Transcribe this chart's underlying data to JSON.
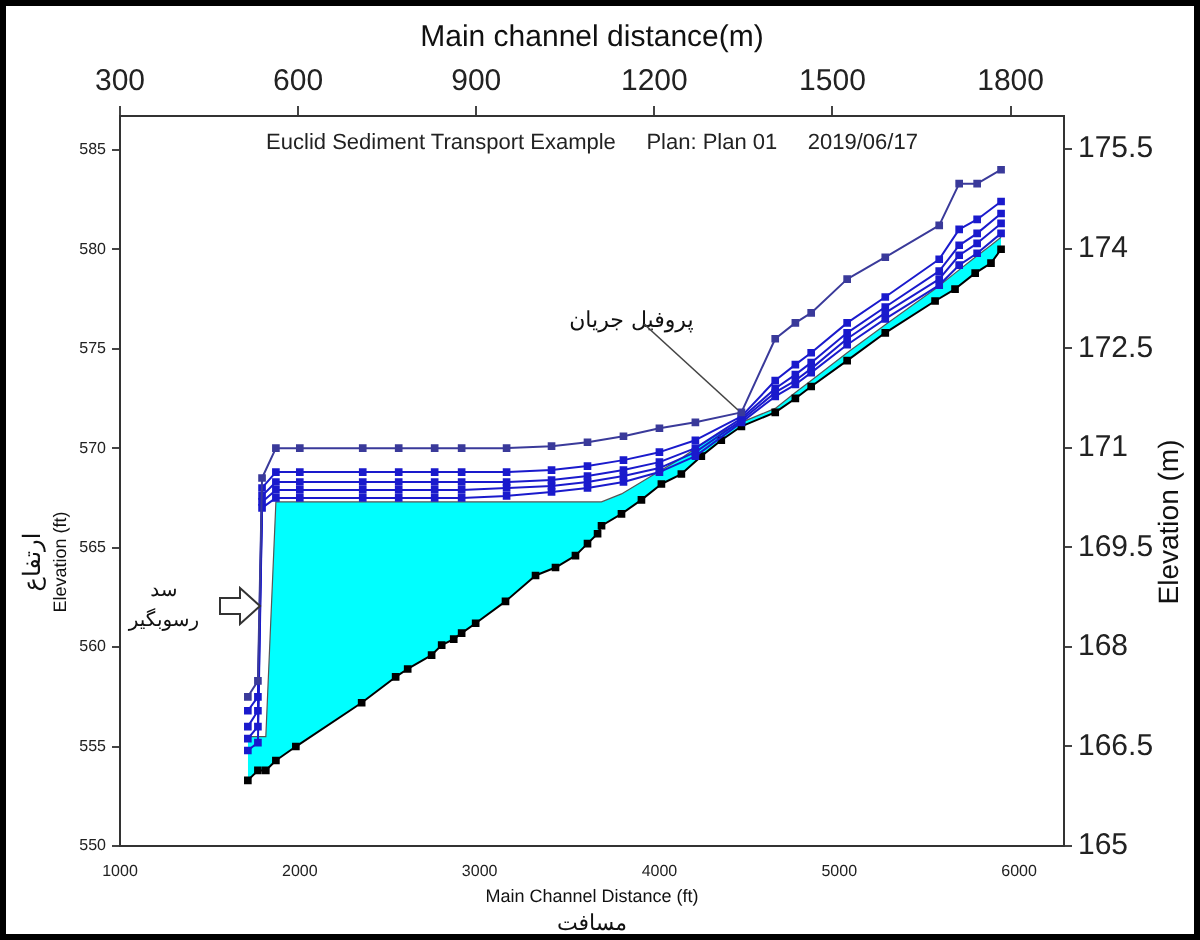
{
  "chart_data": {
    "type": "line",
    "title": "Euclid Sediment Transport Example     Plan: Plan 01     2019/06/17",
    "xlabel": "Main Channel Distance (ft)\nمسافت",
    "ylabel": "ارتفاع\nElevation (ft)",
    "x2label": "Main channel distance(m)",
    "y2label": "Elevation (m)",
    "xlim": [
      1000,
      6250
    ],
    "xticks": [
      1000,
      2000,
      3000,
      4000,
      5000,
      6000
    ],
    "ylim": [
      550,
      586.7
    ],
    "yticks": [
      550,
      555,
      560,
      565,
      570,
      575,
      580,
      585
    ],
    "x2lim": [
      300,
      1890
    ],
    "x2ticks": [
      300,
      600,
      900,
      1200,
      1500,
      1800
    ],
    "y2lim": [
      165,
      176
    ],
    "y2ticks": [
      165,
      166.5,
      168,
      169.5,
      171,
      172.5,
      174,
      175.5
    ],
    "grid": false,
    "legend": false,
    "marker": "square",
    "line_style": "solid",
    "annotations": [
      {
        "text": "پروفیل جریان",
        "x": 4456,
        "y": 571.8
      },
      "سد\nرسوبگیر"
    ],
    "series": [
      {
        "type": "area",
        "color": "#00ffff",
        "marker": "none",
        "x": [
          1711,
          1767,
          1811,
          1867,
          1978,
          2344,
          2533,
          2600,
          2733,
          2789,
          2856,
          2900,
          2978,
          3144,
          3311,
          3422,
          3533,
          3600,
          3656,
          3678,
          3789,
          3900,
          4011,
          4122,
          4233,
          4344,
          4456,
          4644,
          4756,
          4844,
          5044,
          5256,
          5533,
          5644,
          5756,
          5844,
          5900
        ],
        "values": [
          555.5,
          555.5,
          555.5,
          567.3,
          567.3,
          567.3,
          567.3,
          567.3,
          567.3,
          567.3,
          567.3,
          567.3,
          567.3,
          567.3,
          567.3,
          567.3,
          567.3,
          567.3,
          567.3,
          567.3,
          567.7,
          568.3,
          568.9,
          569.5,
          570.2,
          570.8,
          571.3,
          572.0,
          572.8,
          573.4,
          574.8,
          576.2,
          578.0,
          578.8,
          579.6,
          580.2,
          580.6
        ]
      },
      {
        "color": "#3a3a9a",
        "x": [
          1711,
          1767,
          1790,
          1867,
          2000,
          2350,
          2550,
          2750,
          2900,
          3150,
          3400,
          3600,
          3800,
          4000,
          4200,
          4456,
          4644,
          4756,
          4844,
          5044,
          5256,
          5556,
          5667,
          5767,
          5900
        ],
        "values": [
          557.5,
          558.3,
          568.5,
          570.0,
          570.0,
          570.0,
          570.0,
          570.0,
          570.0,
          570.0,
          570.1,
          570.3,
          570.6,
          571.0,
          571.3,
          571.8,
          575.5,
          576.3,
          576.8,
          578.5,
          579.6,
          581.2,
          583.3,
          583.3,
          584.0
        ]
      },
      {
        "color": "#1a1acc",
        "x": [
          1711,
          1767,
          1790,
          1867,
          2000,
          2350,
          2550,
          2750,
          2900,
          3150,
          3400,
          3600,
          3800,
          4000,
          4200,
          4456,
          4644,
          4756,
          4844,
          5044,
          5256,
          5556,
          5667,
          5767,
          5900
        ],
        "values": [
          556.8,
          557.5,
          568.0,
          568.8,
          568.8,
          568.8,
          568.8,
          568.8,
          568.8,
          568.8,
          568.9,
          569.1,
          569.4,
          569.8,
          570.4,
          571.6,
          573.4,
          574.2,
          574.8,
          576.3,
          577.6,
          579.5,
          581.0,
          581.5,
          582.4
        ]
      },
      {
        "color": "#1a1acc",
        "x": [
          1711,
          1767,
          1790,
          1867,
          2000,
          2350,
          2550,
          2750,
          2900,
          3150,
          3400,
          3600,
          3800,
          4000,
          4200,
          4456,
          4644,
          4756,
          4844,
          5044,
          5256,
          5556,
          5667,
          5767,
          5900
        ],
        "values": [
          556.0,
          556.8,
          567.6,
          568.3,
          568.3,
          568.3,
          568.3,
          568.3,
          568.3,
          568.3,
          568.4,
          568.6,
          568.9,
          569.3,
          570.0,
          571.5,
          573.0,
          573.7,
          574.3,
          575.8,
          577.1,
          578.9,
          580.2,
          580.8,
          581.8
        ]
      },
      {
        "color": "#1a1acc",
        "x": [
          1711,
          1767,
          1790,
          1867,
          2000,
          2350,
          2550,
          2750,
          2900,
          3150,
          3400,
          3600,
          3800,
          4000,
          4200,
          4456,
          4644,
          4756,
          4844,
          5044,
          5256,
          5556,
          5667,
          5767,
          5900
        ],
        "values": [
          555.4,
          556.0,
          567.3,
          567.9,
          567.9,
          567.9,
          567.9,
          567.9,
          567.9,
          568.0,
          568.1,
          568.3,
          568.6,
          569.0,
          569.8,
          571.4,
          572.8,
          573.4,
          574.0,
          575.5,
          576.8,
          578.5,
          579.7,
          580.3,
          581.3
        ]
      },
      {
        "color": "#1a1acc",
        "x": [
          1711,
          1767,
          1790,
          1867,
          2000,
          2350,
          2550,
          2750,
          2900,
          3150,
          3400,
          3600,
          3800,
          4000,
          4200,
          4456,
          4644,
          4756,
          4844,
          5044,
          5256,
          5556,
          5667,
          5767,
          5900
        ],
        "values": [
          554.8,
          555.2,
          567.0,
          567.5,
          567.5,
          567.5,
          567.5,
          567.5,
          567.5,
          567.6,
          567.8,
          568.0,
          568.3,
          568.8,
          569.6,
          571.3,
          572.6,
          573.2,
          573.8,
          575.2,
          576.5,
          578.2,
          579.2,
          579.8,
          580.8
        ]
      },
      {
        "color": "#000000",
        "x": [
          1711,
          1767,
          1811,
          1867,
          1978,
          2344,
          2533,
          2600,
          2733,
          2789,
          2856,
          2900,
          2978,
          3144,
          3311,
          3422,
          3533,
          3600,
          3656,
          3678,
          3789,
          3900,
          4011,
          4122,
          4233,
          4344,
          4456,
          4644,
          4756,
          4844,
          5044,
          5256,
          5533,
          5644,
          5756,
          5844,
          5900
        ],
        "values": [
          553.3,
          553.8,
          553.8,
          554.3,
          555.0,
          557.2,
          558.5,
          558.9,
          559.6,
          560.1,
          560.4,
          560.7,
          561.2,
          562.3,
          563.6,
          564.0,
          564.6,
          565.2,
          565.7,
          566.1,
          566.7,
          567.4,
          568.2,
          568.7,
          569.6,
          570.4,
          571.1,
          571.8,
          572.5,
          573.1,
          574.4,
          575.8,
          577.4,
          578.0,
          578.8,
          579.3,
          580.0
        ]
      }
    ]
  }
}
